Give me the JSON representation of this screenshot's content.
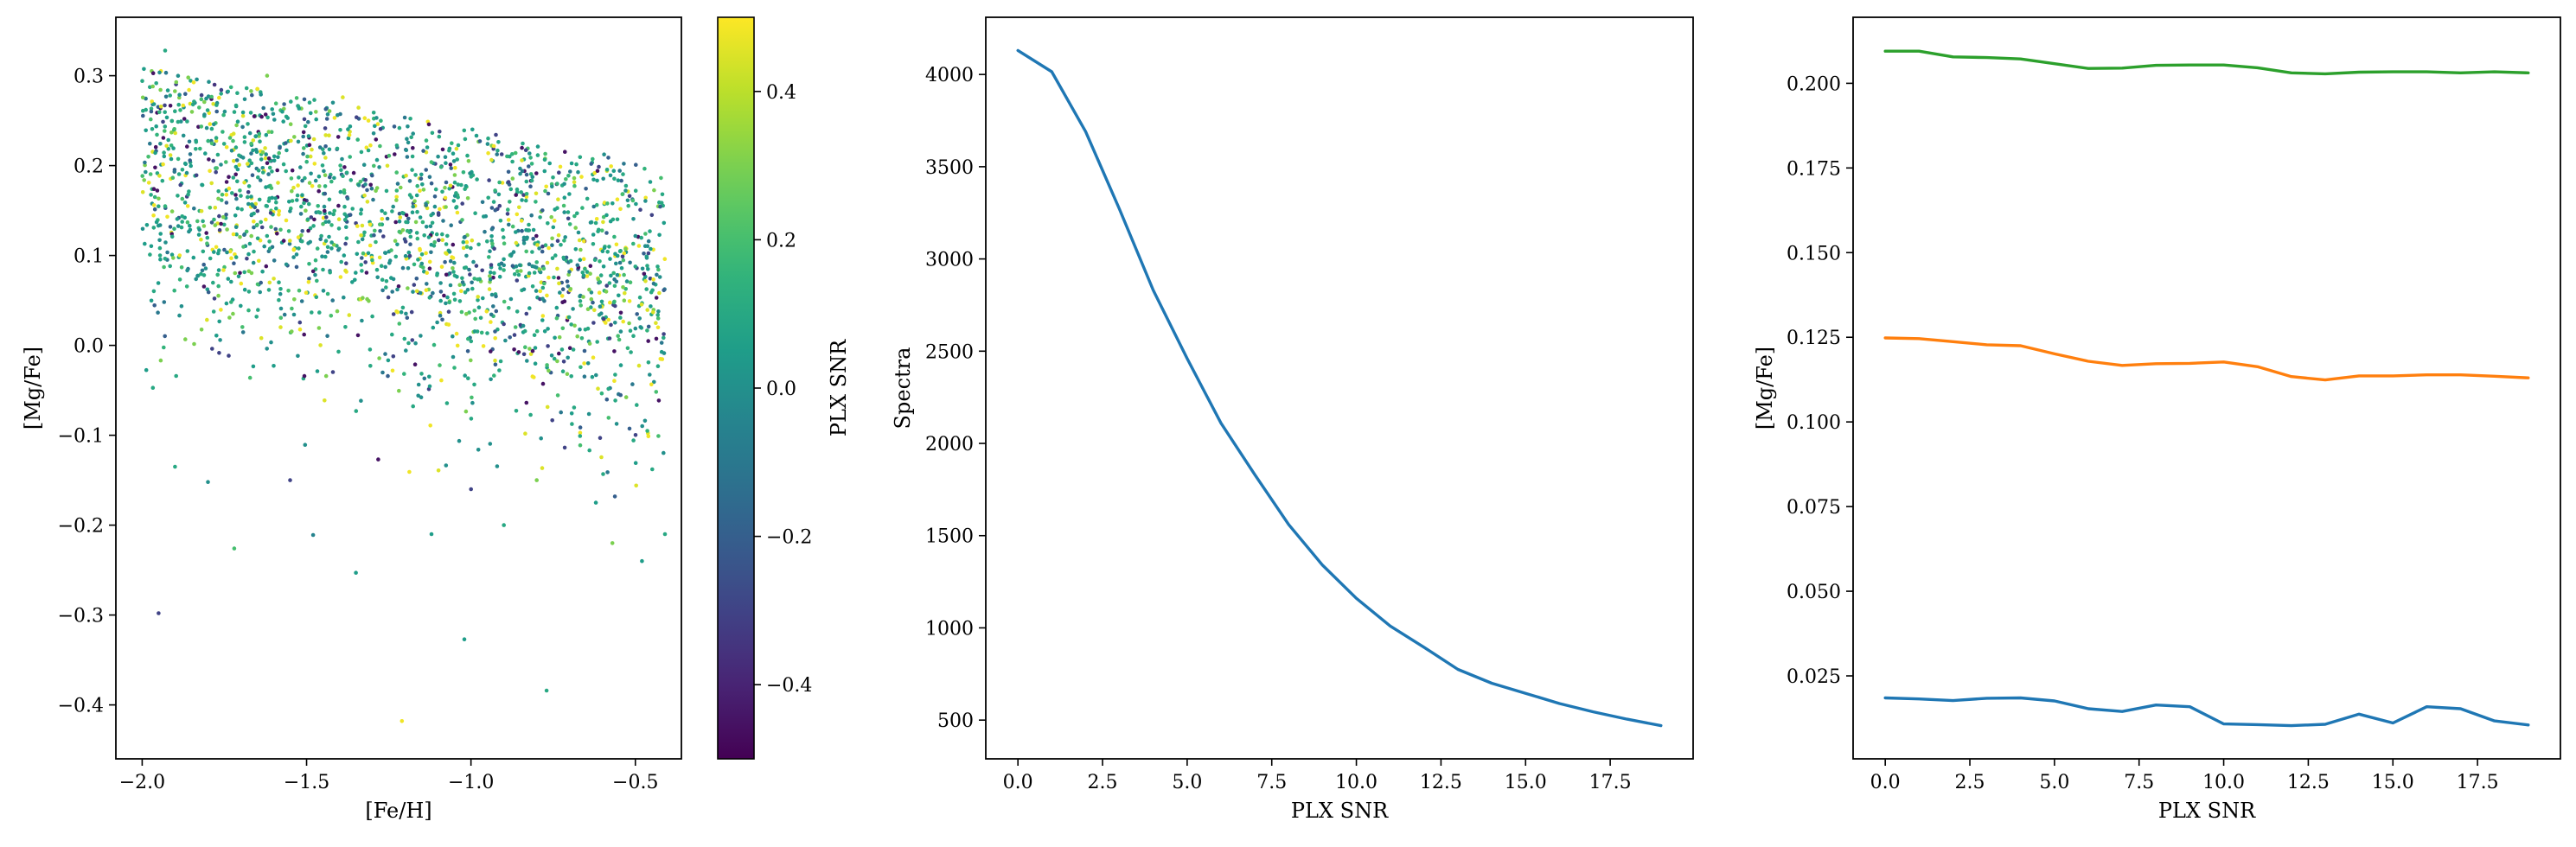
{
  "chart_data": [
    {
      "type": "scatter",
      "title": "",
      "xlabel": "[Fe/H]",
      "ylabel": "[Mg/Fe]",
      "xlim": [
        -2.08,
        -0.36
      ],
      "ylim": [
        -0.46,
        0.365
      ],
      "xticks": [
        -2.0,
        -1.5,
        -1.0,
        -0.5
      ],
      "xtick_labels": [
        "−2.0",
        "−1.5",
        "−1.0",
        "−0.5"
      ],
      "yticks": [
        -0.4,
        -0.3,
        -0.2,
        -0.1,
        0.0,
        0.1,
        0.2,
        0.3
      ],
      "ytick_labels": [
        "−0.4",
        "−0.3",
        "−0.2",
        "−0.1",
        "0.0",
        "0.1",
        "0.2",
        "0.3"
      ],
      "colormap": "viridis",
      "colorbar": {
        "label": "PLX SNR",
        "range": [
          -0.5,
          0.5
        ],
        "ticks": [
          -0.4,
          -0.2,
          0.0,
          0.2,
          0.4
        ],
        "tick_labels": [
          "−0.4",
          "−0.2",
          "0.0",
          "0.2",
          "0.4"
        ]
      },
      "points": [
        [
          -1.95,
          -0.298,
          -0.3
        ],
        [
          -1.21,
          -0.418,
          0.48
        ],
        [
          -1.02,
          -0.327,
          0.05
        ],
        [
          -0.77,
          -0.384,
          0.1
        ],
        [
          -1.35,
          -0.253,
          0.05
        ],
        [
          -1.48,
          -0.211,
          -0.05
        ],
        [
          -1.93,
          0.328,
          0.1
        ],
        [
          -1.86,
          0.298,
          0.3
        ],
        [
          -1.78,
          0.29,
          -0.35
        ],
        [
          -1.62,
          0.3,
          0.3
        ],
        [
          -1.42,
          0.27,
          0.0
        ],
        [
          -1.39,
          0.276,
          0.45
        ],
        [
          -1.55,
          -0.15,
          -0.3
        ],
        [
          -1.12,
          -0.21,
          0.05
        ],
        [
          -0.9,
          -0.2,
          0.1
        ],
        [
          -0.57,
          -0.22,
          0.3
        ],
        [
          -0.48,
          -0.24,
          0.05
        ],
        [
          -0.41,
          -0.21,
          0.1
        ],
        [
          -1.9,
          -0.135,
          0.1
        ],
        [
          -1.8,
          -0.152,
          0.0
        ],
        [
          -1.72,
          -0.226,
          0.2
        ],
        [
          -1.0,
          -0.16,
          -0.3
        ],
        [
          -0.8,
          -0.15,
          0.3
        ],
        [
          -0.62,
          -0.175,
          0.05
        ]
      ],
      "random_fill": {
        "count": 2050,
        "x_range": [
          -2.0,
          -0.41
        ],
        "y_center_at_x_min": 0.19,
        "y_center_at_x_max": 0.06,
        "y_spread": 0.085,
        "upper_bound_at_x_min": 0.31,
        "upper_bound_at_x_max": 0.2
      }
    },
    {
      "type": "line",
      "title": "",
      "xlabel": "PLX SNR",
      "ylabel": "Spectra",
      "xlim": [
        -0.95,
        19.95
      ],
      "ylim": [
        290,
        4310
      ],
      "xticks": [
        0,
        2.5,
        5,
        7.5,
        10,
        12.5,
        15,
        17.5
      ],
      "xtick_labels": [
        "0.0",
        "2.5",
        "5.0",
        "7.5",
        "10.0",
        "12.5",
        "15.0",
        "17.5"
      ],
      "yticks": [
        500,
        1000,
        1500,
        2000,
        2500,
        3000,
        3500,
        4000
      ],
      "ytick_labels": [
        "500",
        "1000",
        "1500",
        "2000",
        "2500",
        "3000",
        "3500",
        "4000"
      ],
      "x": [
        0,
        1,
        2,
        3,
        4,
        5,
        6,
        7,
        8,
        9,
        10,
        11,
        12,
        13,
        14,
        15,
        16,
        17,
        18,
        19
      ],
      "series": [
        {
          "values": [
            4130,
            4015,
            3690,
            3270,
            2830,
            2460,
            2110,
            1830,
            1560,
            1340,
            1160,
            1010,
            895,
            775,
            700,
            645,
            590,
            545,
            505,
            470
          ],
          "color": "#1f77b4"
        }
      ]
    },
    {
      "type": "line",
      "title": "",
      "xlabel": "PLX SNR",
      "ylabel": "[Mg/Fe]",
      "xlim": [
        -0.95,
        19.95
      ],
      "ylim": [
        0.0005,
        0.2195
      ],
      "xticks": [
        0,
        2.5,
        5,
        7.5,
        10,
        12.5,
        15,
        17.5
      ],
      "xtick_labels": [
        "0.0",
        "2.5",
        "5.0",
        "7.5",
        "10.0",
        "12.5",
        "15.0",
        "17.5"
      ],
      "yticks": [
        0.025,
        0.05,
        0.075,
        0.1,
        0.125,
        0.15,
        0.175,
        0.2
      ],
      "ytick_labels": [
        "0.025",
        "0.050",
        "0.075",
        "0.100",
        "0.125",
        "0.150",
        "0.175",
        "0.200"
      ],
      "x": [
        0,
        1,
        2,
        3,
        4,
        5,
        6,
        7,
        8,
        9,
        10,
        11,
        12,
        13,
        14,
        15,
        16,
        17,
        18,
        19
      ],
      "series": [
        {
          "values": [
            0.2095,
            0.2095,
            0.2078,
            0.2076,
            0.2072,
            0.2058,
            0.2044,
            0.2045,
            0.2053,
            0.2054,
            0.2054,
            0.2046,
            0.2031,
            0.2028,
            0.2033,
            0.2034,
            0.2034,
            0.2031,
            0.2034,
            0.2031
          ],
          "color": "#2ca02c"
        },
        {
          "values": [
            0.1248,
            0.1246,
            0.1237,
            0.1228,
            0.1225,
            0.1201,
            0.1179,
            0.1167,
            0.1172,
            0.1173,
            0.1177,
            0.1163,
            0.1134,
            0.1124,
            0.1136,
            0.1136,
            0.1139,
            0.1139,
            0.1135,
            0.113
          ],
          "color": "#ff7f0e"
        },
        {
          "values": [
            0.0185,
            0.0182,
            0.0177,
            0.0184,
            0.0185,
            0.0176,
            0.0153,
            0.0145,
            0.0164,
            0.0159,
            0.0108,
            0.0106,
            0.0103,
            0.0107,
            0.0137,
            0.0111,
            0.0159,
            0.0153,
            0.0117,
            0.0105
          ],
          "color": "#1f77b4"
        }
      ]
    }
  ]
}
